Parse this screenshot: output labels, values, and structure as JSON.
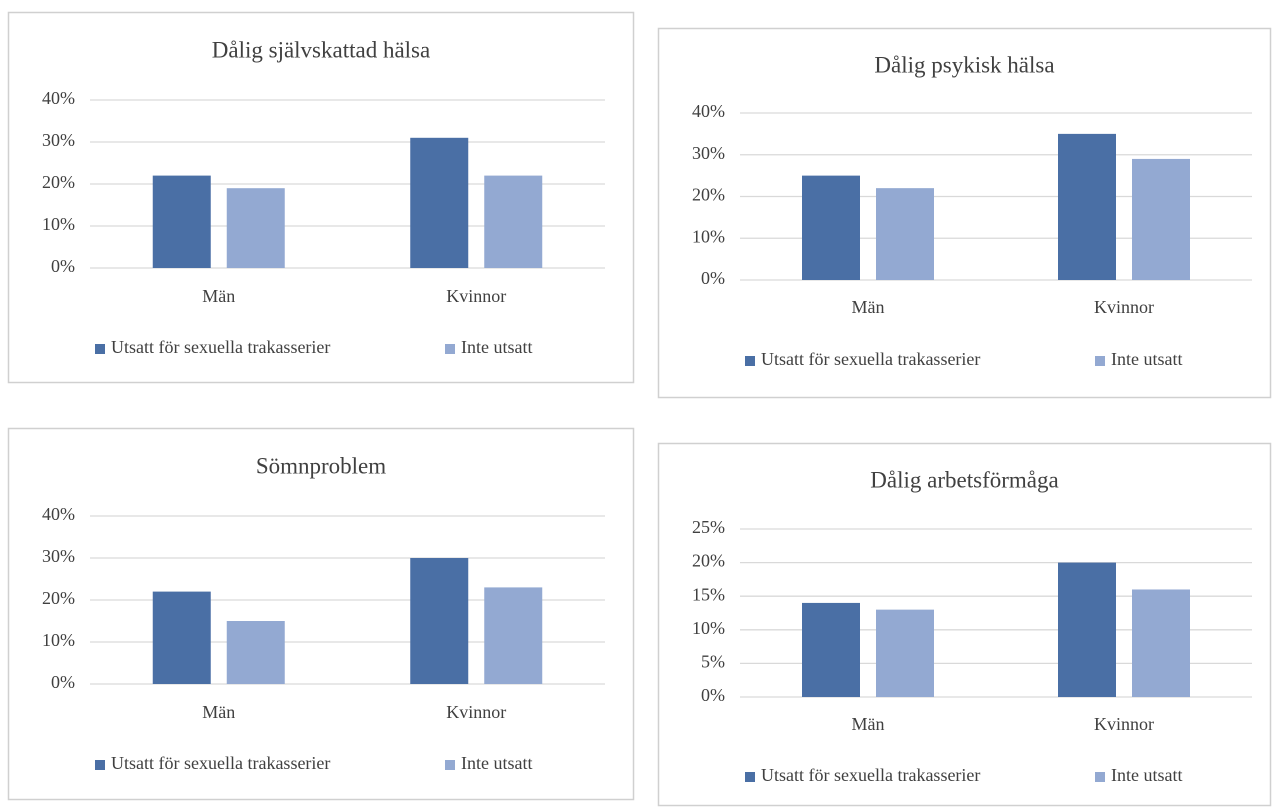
{
  "chart_data": [
    {
      "type": "bar",
      "title": "Dålig självskattad hälsa",
      "categories": [
        "Män",
        "Kvinnor"
      ],
      "series": [
        {
          "name": "Utsatt för sexuella trakasserier",
          "color": "#4a6fa5",
          "values": [
            22,
            31
          ]
        },
        {
          "name": "Inte utsatt",
          "color": "#93a9d2",
          "values": [
            19,
            22
          ]
        }
      ],
      "ylim": [
        0,
        40
      ],
      "yticks": [
        {
          "value": 0,
          "label": "0%"
        },
        {
          "value": 10,
          "label": "10%"
        },
        {
          "value": 20,
          "label": "20%"
        },
        {
          "value": 30,
          "label": "30%"
        },
        {
          "value": 40,
          "label": "40%"
        }
      ],
      "grid": true,
      "legend": "bottom"
    },
    {
      "type": "bar",
      "title": "Dålig psykisk hälsa",
      "categories": [
        "Män",
        "Kvinnor"
      ],
      "series": [
        {
          "name": "Utsatt för sexuella trakasserier",
          "color": "#4a6fa5",
          "values": [
            25,
            35
          ]
        },
        {
          "name": "Inte utsatt",
          "color": "#93a9d2",
          "values": [
            22,
            29
          ]
        }
      ],
      "ylim": [
        0,
        40
      ],
      "yticks": [
        {
          "value": 0,
          "label": "0%"
        },
        {
          "value": 10,
          "label": "10%"
        },
        {
          "value": 20,
          "label": "20%"
        },
        {
          "value": 30,
          "label": "30%"
        },
        {
          "value": 40,
          "label": "40%"
        }
      ],
      "grid": true,
      "legend": "bottom"
    },
    {
      "type": "bar",
      "title": "Sömnproblem",
      "categories": [
        "Män",
        "Kvinnor"
      ],
      "series": [
        {
          "name": "Utsatt för sexuella trakasserier",
          "color": "#4a6fa5",
          "values": [
            22,
            30
          ]
        },
        {
          "name": "Inte utsatt",
          "color": "#93a9d2",
          "values": [
            15,
            23
          ]
        }
      ],
      "ylim": [
        0,
        40
      ],
      "yticks": [
        {
          "value": 0,
          "label": "0%"
        },
        {
          "value": 10,
          "label": "10%"
        },
        {
          "value": 20,
          "label": "20%"
        },
        {
          "value": 30,
          "label": "30%"
        },
        {
          "value": 40,
          "label": "40%"
        }
      ],
      "grid": true,
      "legend": "bottom"
    },
    {
      "type": "bar",
      "title": "Dålig arbetsförmåga",
      "categories": [
        "Män",
        "Kvinnor"
      ],
      "series": [
        {
          "name": "Utsatt för sexuella trakasserier",
          "color": "#4a6fa5",
          "values": [
            14,
            20
          ]
        },
        {
          "name": "Inte utsatt",
          "color": "#93a9d2",
          "values": [
            13,
            16
          ]
        }
      ],
      "ylim": [
        0,
        25
      ],
      "yticks": [
        {
          "value": 0,
          "label": "0%"
        },
        {
          "value": 5,
          "label": "5%"
        },
        {
          "value": 10,
          "label": "10%"
        },
        {
          "value": 15,
          "label": "15%"
        },
        {
          "value": 20,
          "label": "20%"
        },
        {
          "value": 25,
          "label": "25%"
        }
      ],
      "grid": true,
      "legend": "bottom"
    }
  ]
}
